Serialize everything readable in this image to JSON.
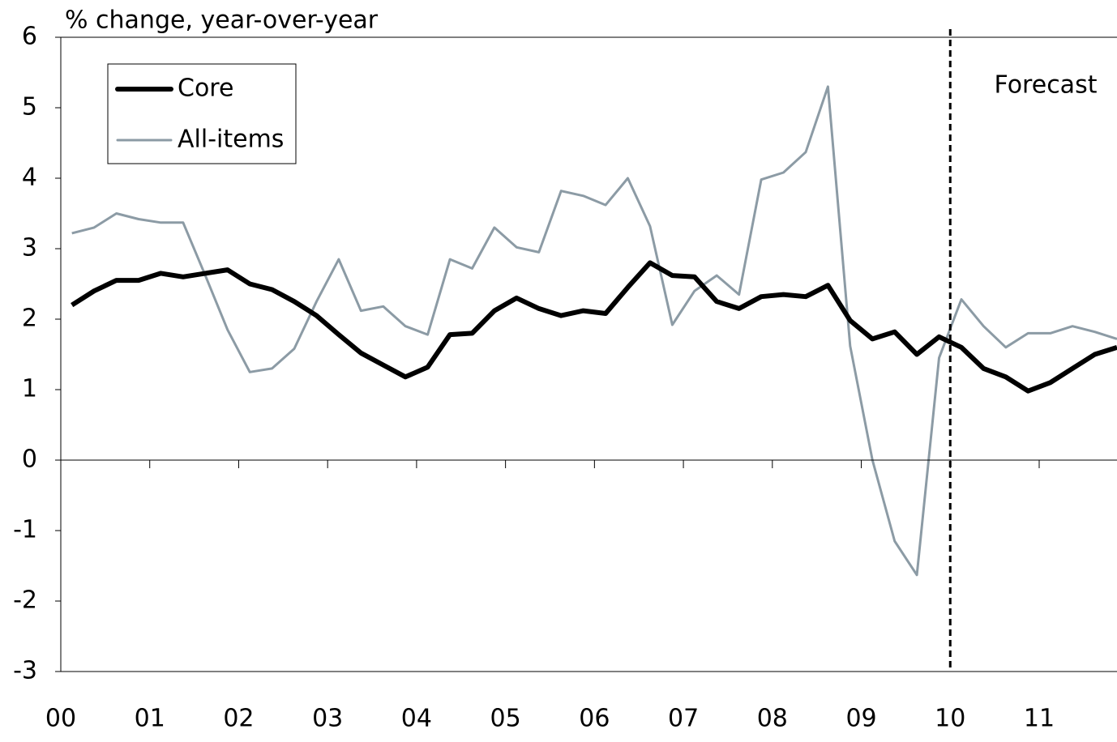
{
  "chart_data": {
    "type": "line",
    "y_label": "% change, year-over-year",
    "x": [
      0.125,
      0.375,
      0.625,
      0.875,
      1.125,
      1.375,
      1.625,
      1.875,
      2.125,
      2.375,
      2.625,
      2.875,
      3.125,
      3.375,
      3.625,
      3.875,
      4.125,
      4.375,
      4.625,
      4.875,
      5.125,
      5.375,
      5.625,
      5.875,
      6.125,
      6.375,
      6.625,
      6.875,
      7.125,
      7.375,
      7.625,
      7.875,
      8.125,
      8.375,
      8.625,
      8.875,
      9.125,
      9.375,
      9.625,
      9.875,
      10.125,
      10.375,
      10.625,
      10.875,
      11.125,
      11.375,
      11.625,
      11.875
    ],
    "series": [
      {
        "name": "Core",
        "color": "#000000",
        "width": 6,
        "values": [
          2.2,
          2.4,
          2.55,
          2.55,
          2.65,
          2.6,
          2.65,
          2.7,
          2.5,
          2.42,
          2.25,
          2.05,
          1.78,
          1.52,
          1.35,
          1.18,
          1.32,
          1.78,
          1.8,
          2.12,
          2.3,
          2.15,
          2.05,
          2.12,
          2.08,
          2.45,
          2.8,
          2.62,
          2.6,
          2.25,
          2.15,
          2.32,
          2.35,
          2.32,
          2.48,
          1.98,
          1.72,
          1.82,
          1.5,
          1.75,
          1.6,
          1.3,
          1.18,
          0.98,
          1.1,
          1.3,
          1.5,
          1.6
        ]
      },
      {
        "name": "All-items",
        "color": "#8c9ba5",
        "width": 3,
        "values": [
          3.22,
          3.3,
          3.5,
          3.42,
          3.37,
          3.37,
          2.62,
          1.85,
          1.25,
          1.3,
          1.58,
          2.25,
          2.85,
          2.12,
          2.18,
          1.9,
          1.78,
          2.85,
          2.72,
          3.3,
          3.02,
          2.95,
          3.82,
          3.75,
          3.62,
          4.0,
          3.32,
          1.92,
          2.4,
          2.62,
          2.35,
          3.98,
          4.08,
          4.37,
          5.3,
          1.62,
          0.0,
          -1.15,
          -1.63,
          1.45,
          2.28,
          1.9,
          1.6,
          1.8,
          1.8,
          1.9,
          1.82,
          1.72
        ]
      }
    ],
    "xlim": [
      0,
      11.875
    ],
    "xticks": [
      {
        "value": 0,
        "label": "00"
      },
      {
        "value": 1,
        "label": "01"
      },
      {
        "value": 2,
        "label": "02"
      },
      {
        "value": 3,
        "label": "03"
      },
      {
        "value": 4,
        "label": "04"
      },
      {
        "value": 5,
        "label": "05"
      },
      {
        "value": 6,
        "label": "06"
      },
      {
        "value": 7,
        "label": "07"
      },
      {
        "value": 8,
        "label": "08"
      },
      {
        "value": 9,
        "label": "09"
      },
      {
        "value": 10,
        "label": "10"
      },
      {
        "value": 11,
        "label": "11"
      }
    ],
    "ylim": [
      -3,
      6
    ],
    "yticks": [
      -3,
      -2,
      -1,
      0,
      1,
      2,
      3,
      4,
      5,
      6
    ],
    "annotation": {
      "text": "Forecast",
      "x": 10
    },
    "legend": "top-left"
  }
}
